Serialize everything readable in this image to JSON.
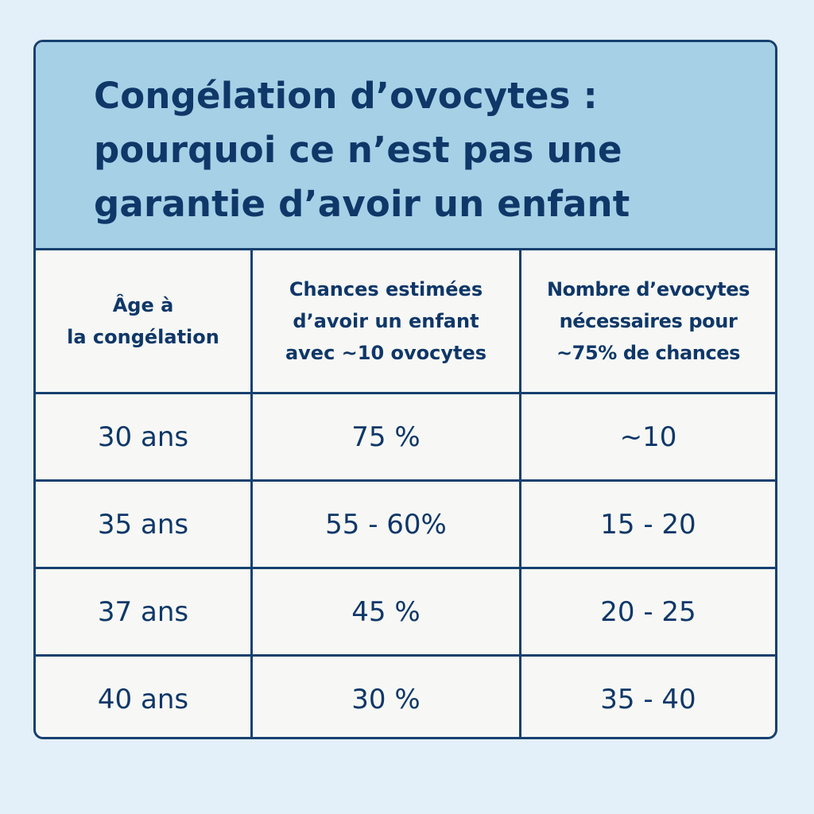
{
  "title": {
    "line1": "Congélation d’ovocytes :",
    "line2": "pourquoi ce n’est pas une",
    "line3": "garantie d’avoir un enfant"
  },
  "table": {
    "headers": [
      {
        "lines": [
          "Âge à",
          "la congélation"
        ]
      },
      {
        "lines": [
          "Chances estimées",
          "d’avoir un enfant",
          "avec ~10 ovocytes"
        ]
      },
      {
        "lines": [
          "Nombre d’evocytes",
          "nécessaires pour",
          "~75% de chances"
        ]
      }
    ],
    "rows": [
      [
        "30 ans",
        "75 %",
        "~10"
      ],
      [
        "35 ans",
        "55 - 60%",
        "15 - 20"
      ],
      [
        "37 ans",
        "45 %",
        "20 - 25"
      ],
      [
        "40 ans",
        "30 %",
        "35 - 40"
      ]
    ]
  },
  "colors": {
    "background": "#e3eff9",
    "title_band": "#a6d0e6",
    "text": "#0f3768",
    "border": "#17406f",
    "table_bg": "#f7f8f5"
  }
}
